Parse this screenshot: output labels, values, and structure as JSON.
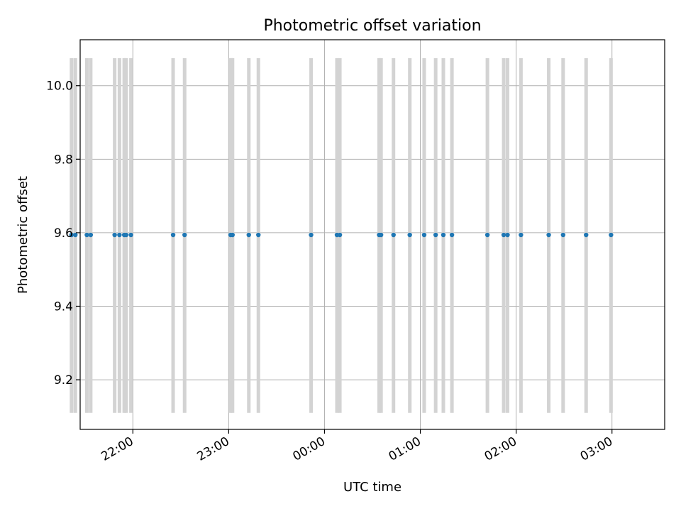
{
  "chart_data": {
    "type": "scatter",
    "title": "Photometric offset variation",
    "xlabel": "UTC time",
    "ylabel": "Photometric offset",
    "grid": true,
    "x_unit": "hours (UTC, continuing past midnight)",
    "xlim": [
      21.45,
      27.55
    ],
    "ylim": [
      9.065,
      10.125
    ],
    "x_ticks": [
      {
        "value": 22,
        "label": "22:00"
      },
      {
        "value": 23,
        "label": "23:00"
      },
      {
        "value": 24,
        "label": "00:00"
      },
      {
        "value": 25,
        "label": "01:00"
      },
      {
        "value": 26,
        "label": "02:00"
      },
      {
        "value": 27,
        "label": "03:00"
      }
    ],
    "y_ticks": [
      {
        "value": 9.2,
        "label": "9.2"
      },
      {
        "value": 9.4,
        "label": "9.4"
      },
      {
        "value": 9.6,
        "label": "9.6"
      },
      {
        "value": 9.8,
        "label": "9.8"
      },
      {
        "value": 10.0,
        "label": "10.0"
      }
    ],
    "colors": {
      "points": "#1f77b4",
      "error_bars": "#d3d3d3",
      "grid": "#b0b0b0"
    },
    "error_bar_range": [
      9.11,
      10.075
    ],
    "points": [
      {
        "x": 21.36,
        "y": 9.594
      },
      {
        "x": 21.4,
        "y": 9.594
      },
      {
        "x": 21.52,
        "y": 9.594
      },
      {
        "x": 21.56,
        "y": 9.594
      },
      {
        "x": 21.81,
        "y": 9.594
      },
      {
        "x": 21.86,
        "y": 9.594
      },
      {
        "x": 21.91,
        "y": 9.594
      },
      {
        "x": 21.93,
        "y": 9.594
      },
      {
        "x": 21.98,
        "y": 9.594
      },
      {
        "x": 22.42,
        "y": 9.594
      },
      {
        "x": 22.54,
        "y": 9.594
      },
      {
        "x": 23.02,
        "y": 9.594
      },
      {
        "x": 23.04,
        "y": 9.594
      },
      {
        "x": 23.21,
        "y": 9.594
      },
      {
        "x": 23.31,
        "y": 9.594
      },
      {
        "x": 23.86,
        "y": 9.594
      },
      {
        "x": 24.13,
        "y": 9.594
      },
      {
        "x": 24.16,
        "y": 9.594
      },
      {
        "x": 24.57,
        "y": 9.594
      },
      {
        "x": 24.59,
        "y": 9.594
      },
      {
        "x": 24.72,
        "y": 9.594
      },
      {
        "x": 24.89,
        "y": 9.594
      },
      {
        "x": 25.04,
        "y": 9.594
      },
      {
        "x": 25.16,
        "y": 9.594
      },
      {
        "x": 25.24,
        "y": 9.594
      },
      {
        "x": 25.33,
        "y": 9.594
      },
      {
        "x": 25.7,
        "y": 9.594
      },
      {
        "x": 25.87,
        "y": 9.594
      },
      {
        "x": 25.91,
        "y": 9.594
      },
      {
        "x": 26.05,
        "y": 9.594
      },
      {
        "x": 26.34,
        "y": 9.594
      },
      {
        "x": 26.49,
        "y": 9.594
      },
      {
        "x": 26.73,
        "y": 9.594
      },
      {
        "x": 26.99,
        "y": 9.594
      }
    ]
  }
}
